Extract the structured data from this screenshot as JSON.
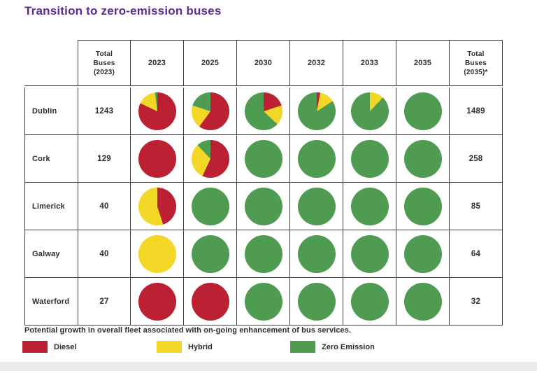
{
  "page": {
    "title": "Transition to zero-emission buses",
    "footnote": "Potential growth in overall fleet associated with on-going enhancement of bus services."
  },
  "colors": {
    "title": "#5b2d90",
    "grid_line": "#3f3f3f",
    "diesel": "#bb2033",
    "hybrid": "#f2d727",
    "zero_emission": "#4f9b51",
    "bottom_bar": "#ebebeb"
  },
  "legend": [
    {
      "label": "Diesel",
      "color": "#bb2033"
    },
    {
      "label": "Hybrid",
      "color": "#f2d727"
    },
    {
      "label": "Zero Emission",
      "color": "#4f9b51"
    }
  ],
  "chart_data": {
    "type": "pie",
    "title": "Transition to zero-emission buses",
    "col_headers": [
      "",
      "Total Buses (2023)",
      "2023",
      "2025",
      "2030",
      "2032",
      "2033",
      "2035",
      "Total Buses (2035)*"
    ],
    "categories": [
      "2023",
      "2025",
      "2030",
      "2032",
      "2033",
      "2035"
    ],
    "series_colors": {
      "Diesel": "#bb2033",
      "Hybrid": "#f2d727",
      "Zero Emission": "#4f9b51"
    },
    "legend_entries": [
      "Diesel",
      "Hybrid",
      "Zero Emission"
    ],
    "rows": [
      {
        "city": "Dublin",
        "total_buses_2023": "1243",
        "total_buses_2035": "1489",
        "pies": {
          "2023": {
            "Diesel": 82,
            "Hybrid": 16,
            "Zero Emission": 2
          },
          "2025": {
            "Diesel": 60,
            "Hybrid": 20,
            "Zero Emission": 20
          },
          "2030": {
            "Diesel": 20,
            "Hybrid": 17,
            "Zero Emission": 63
          },
          "2032": {
            "Diesel": 3,
            "Hybrid": 13,
            "Zero Emission": 84
          },
          "2033": {
            "Hybrid": 12,
            "Zero Emission": 88
          },
          "2035": {
            "Zero Emission": 100
          }
        }
      },
      {
        "city": "Cork",
        "total_buses_2023": "129",
        "total_buses_2035": "258",
        "pies": {
          "2023": {
            "Diesel": 100
          },
          "2025": {
            "Diesel": 57,
            "Hybrid": 31,
            "Zero Emission": 12
          },
          "2030": {
            "Zero Emission": 100
          },
          "2032": {
            "Zero Emission": 100
          },
          "2033": {
            "Zero Emission": 100
          },
          "2035": {
            "Zero Emission": 100
          }
        }
      },
      {
        "city": "Limerick",
        "total_buses_2023": "40",
        "total_buses_2035": "85",
        "pies": {
          "2023": {
            "Diesel": 45,
            "Hybrid": 55
          },
          "2025": {
            "Zero Emission": 100
          },
          "2030": {
            "Zero Emission": 100
          },
          "2032": {
            "Zero Emission": 100
          },
          "2033": {
            "Zero Emission": 100
          },
          "2035": {
            "Zero Emission": 100
          }
        }
      },
      {
        "city": "Galway",
        "total_buses_2023": "40",
        "total_buses_2035": "64",
        "pies": {
          "2023": {
            "Hybrid": 100
          },
          "2025": {
            "Zero Emission": 100
          },
          "2030": {
            "Zero Emission": 100
          },
          "2032": {
            "Zero Emission": 100
          },
          "2033": {
            "Zero Emission": 100
          },
          "2035": {
            "Zero Emission": 100
          }
        }
      },
      {
        "city": "Waterford",
        "total_buses_2023": "27",
        "total_buses_2035": "32",
        "pies": {
          "2023": {
            "Diesel": 100
          },
          "2025": {
            "Diesel": 100
          },
          "2030": {
            "Zero Emission": 100
          },
          "2032": {
            "Zero Emission": 100
          },
          "2033": {
            "Zero Emission": 100
          },
          "2035": {
            "Zero Emission": 100
          }
        }
      }
    ]
  }
}
